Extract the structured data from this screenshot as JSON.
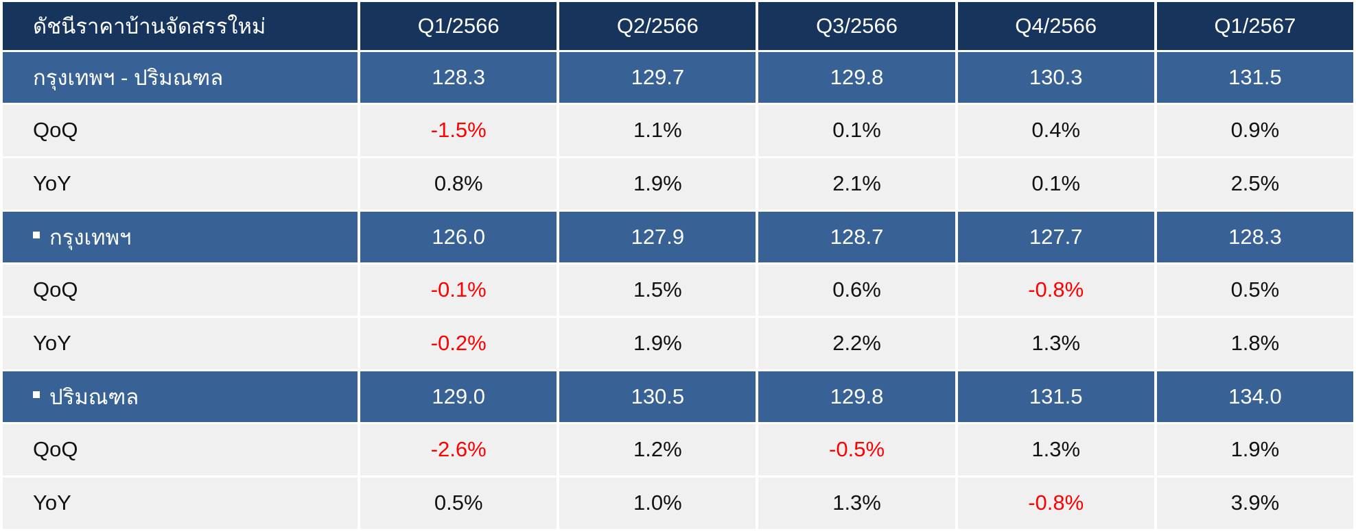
{
  "header": {
    "title": "ดัชนีราคาบ้านจัดสรรใหม่",
    "periods": [
      "Q1/2566",
      "Q2/2566",
      "Q3/2566",
      "Q4/2566",
      "Q1/2567"
    ]
  },
  "colors": {
    "header_bg": "#17345c",
    "index_row_bg": "#386195",
    "sub_row_bg": "#f0f0f0",
    "negative": "#ff0000"
  },
  "chart_data": {
    "type": "table",
    "columns": [
      "ดัชนีราคาบ้านจัดสรรใหม่",
      "Q1/2566",
      "Q2/2566",
      "Q3/2566",
      "Q4/2566",
      "Q1/2567"
    ],
    "groups": [
      {
        "name": "กรุงเทพฯ - ปริมณฑล",
        "bullet": false,
        "index": [
          "128.3",
          "129.7",
          "129.8",
          "130.3",
          "131.5"
        ],
        "rows": [
          {
            "label": "QoQ",
            "values": [
              "-1.5%",
              "1.1%",
              "0.1%",
              "0.4%",
              "0.9%"
            ]
          },
          {
            "label": "YoY",
            "values": [
              "0.8%",
              "1.9%",
              "2.1%",
              "0.1%",
              "2.5%"
            ]
          }
        ]
      },
      {
        "name": "กรุงเทพฯ",
        "bullet": true,
        "index": [
          "126.0",
          "127.9",
          "128.7",
          "127.7",
          "128.3"
        ],
        "rows": [
          {
            "label": "QoQ",
            "values": [
              "-0.1%",
              "1.5%",
              "0.6%",
              "-0.8%",
              "0.5%"
            ]
          },
          {
            "label": "YoY",
            "values": [
              "-0.2%",
              "1.9%",
              "2.2%",
              "1.3%",
              "1.8%"
            ]
          }
        ]
      },
      {
        "name": "ปริมณฑล",
        "bullet": true,
        "index": [
          "129.0",
          "130.5",
          "129.8",
          "131.5",
          "134.0"
        ],
        "rows": [
          {
            "label": "QoQ",
            "values": [
              "-2.6%",
              "1.2%",
              "-0.5%",
              "1.3%",
              "1.9%"
            ]
          },
          {
            "label": "YoY",
            "values": [
              "0.5%",
              "1.0%",
              "1.3%",
              "-0.8%",
              "3.9%"
            ]
          }
        ]
      }
    ]
  }
}
